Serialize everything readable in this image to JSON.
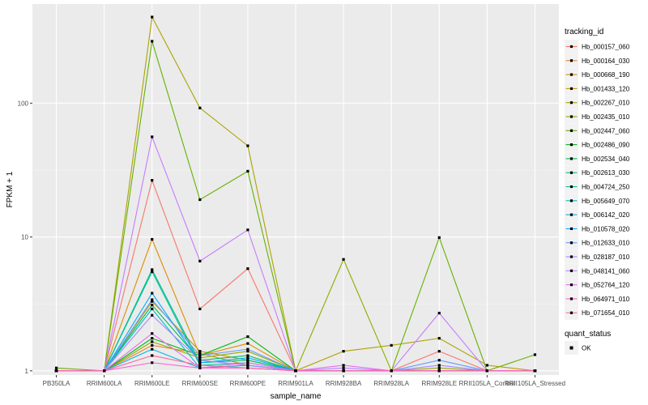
{
  "chart_data": {
    "type": "line",
    "title": "",
    "xlabel": "sample_name",
    "ylabel": "FPKM + 1",
    "y_scale": "log10",
    "ylim": [
      0.93,
      550
    ],
    "yticks": [
      1,
      10,
      100
    ],
    "ytick_labels": [
      "1",
      "10",
      "100"
    ],
    "grid": true,
    "legend_position": "right",
    "categories": [
      "PB350LA",
      "RRIM600LA",
      "RRIM600LE",
      "RRIM600SE",
      "RRIM600PE",
      "RRIM901LA",
      "RRIM928BA",
      "RRIM928LA",
      "RRIM928LE",
      "RRII105LA_Control",
      "RRII105LA_Stressed"
    ],
    "legend_title": "tracking_id",
    "series": [
      {
        "name": "Hb_000157_060",
        "color": "#F8766D",
        "values": [
          1.0,
          1.0,
          26.5,
          2.9,
          5.8,
          1.0,
          1.0,
          1.0,
          1.4,
          1.0,
          1.0
        ]
      },
      {
        "name": "Hb_000164_030",
        "color": "#EC8239",
        "values": [
          1.0,
          1.0,
          1.55,
          1.35,
          1.1,
          1.0,
          1.0,
          1.0,
          1.0,
          1.0,
          1.0
        ]
      },
      {
        "name": "Hb_000668_190",
        "color": "#DB8E00",
        "values": [
          1.0,
          1.0,
          9.6,
          1.3,
          1.6,
          1.0,
          1.0,
          1.0,
          1.0,
          1.0,
          1.0
        ]
      },
      {
        "name": "Hb_001433_120",
        "color": "#C79800",
        "values": [
          1.0,
          1.0,
          3.3,
          1.4,
          1.2,
          1.0,
          1.0,
          1.0,
          1.0,
          1.0,
          1.0
        ]
      },
      {
        "name": "Hb_002267_010",
        "color": "#AEA200",
        "values": [
          1.0,
          1.0,
          440.0,
          92.0,
          48.0,
          1.0,
          1.4,
          1.55,
          1.75,
          1.1,
          1.0
        ]
      },
      {
        "name": "Hb_002435_010",
        "color": "#8FAA00",
        "values": [
          1.0,
          1.0,
          1.65,
          1.25,
          1.4,
          1.0,
          6.8,
          1.0,
          1.05,
          1.0,
          1.0
        ]
      },
      {
        "name": "Hb_002447_060",
        "color": "#64B200",
        "values": [
          1.05,
          1.0,
          290.0,
          19.0,
          31.0,
          1.0,
          1.0,
          1.0,
          9.9,
          1.0,
          1.32
        ]
      },
      {
        "name": "Hb_002486_090",
        "color": "#00B712",
        "values": [
          1.0,
          1.0,
          1.75,
          1.3,
          1.8,
          1.0,
          1.0,
          1.0,
          1.0,
          1.0,
          1.0
        ]
      },
      {
        "name": "Hb_002534_040",
        "color": "#00BC56",
        "values": [
          1.0,
          1.0,
          3.1,
          1.2,
          1.3,
          1.0,
          1.0,
          1.0,
          1.0,
          1.0,
          1.0
        ]
      },
      {
        "name": "Hb_002613_030",
        "color": "#00BF7D",
        "values": [
          1.0,
          1.0,
          5.7,
          1.15,
          1.2,
          1.0,
          1.0,
          1.0,
          1.0,
          1.0,
          1.0
        ]
      },
      {
        "name": "Hb_004724_250",
        "color": "#00C19F",
        "values": [
          1.0,
          1.0,
          5.5,
          1.1,
          1.15,
          1.0,
          1.0,
          1.0,
          1.0,
          1.0,
          1.0
        ]
      },
      {
        "name": "Hb_005649_070",
        "color": "#00BFC4",
        "values": [
          1.0,
          1.0,
          2.9,
          1.05,
          1.1,
          1.0,
          1.0,
          1.0,
          1.0,
          1.0,
          1.0
        ]
      },
      {
        "name": "Hb_006142_020",
        "color": "#00B8E5",
        "values": [
          1.0,
          1.0,
          1.45,
          1.05,
          1.1,
          1.0,
          1.0,
          1.0,
          1.0,
          1.0,
          1.0
        ]
      },
      {
        "name": "Hb_010578_020",
        "color": "#00ABFD",
        "values": [
          1.0,
          1.0,
          3.8,
          1.15,
          1.25,
          1.0,
          1.0,
          1.0,
          1.0,
          1.0,
          1.0
        ]
      },
      {
        "name": "Hb_012633_010",
        "color": "#619CFF",
        "values": [
          1.0,
          1.0,
          3.4,
          1.3,
          1.45,
          1.0,
          1.0,
          1.0,
          1.2,
          1.0,
          1.0
        ]
      },
      {
        "name": "Hb_028187_010",
        "color": "#A58AFF",
        "values": [
          1.0,
          1.0,
          2.6,
          1.2,
          1.1,
          1.0,
          1.05,
          1.0,
          1.1,
          1.0,
          1.0
        ]
      },
      {
        "name": "Hb_048141_060",
        "color": "#C77CFF",
        "values": [
          1.0,
          1.0,
          56.0,
          6.6,
          11.3,
          1.0,
          1.0,
          1.0,
          2.7,
          1.0,
          1.0
        ]
      },
      {
        "name": "Hb_052764_120",
        "color": "#E76BF3",
        "values": [
          1.0,
          1.0,
          1.9,
          1.05,
          1.15,
          1.0,
          1.1,
          1.0,
          1.0,
          1.0,
          1.0
        ]
      },
      {
        "name": "Hb_064971_010",
        "color": "#FD61D1",
        "values": [
          1.0,
          1.0,
          1.15,
          1.05,
          1.05,
          1.0,
          1.0,
          1.0,
          1.0,
          1.0,
          1.0
        ]
      },
      {
        "name": "Hb_071654_010",
        "color": "#FF67A4",
        "values": [
          1.0,
          1.0,
          1.3,
          1.1,
          1.05,
          1.0,
          1.0,
          1.0,
          1.0,
          1.0,
          1.0
        ]
      }
    ],
    "point_legend": {
      "title": "quant_status",
      "label": "OK",
      "color": "#000000"
    }
  }
}
